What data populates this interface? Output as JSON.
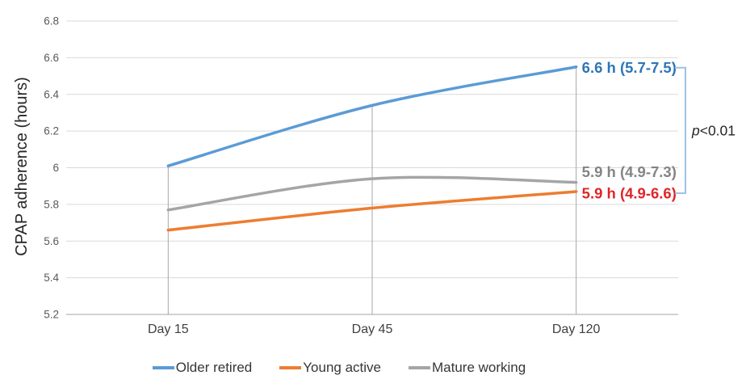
{
  "chart_data": {
    "type": "line",
    "title": "",
    "xlabel": "",
    "ylabel": "CPAP adherence (hours)",
    "categories": [
      "Day 15",
      "Day 45",
      "Day 120"
    ],
    "series": [
      {
        "name": "Older retired",
        "color": "#5b9bd5",
        "values": [
          6.01,
          6.34,
          6.55
        ],
        "end_label": "6.6 h (5.7-7.5)",
        "end_label_color": "#2e75b6"
      },
      {
        "name": "Young active",
        "color": "#ed7d31",
        "values": [
          5.66,
          5.78,
          5.87
        ],
        "end_label": "5.9 h (4.9-6.6)",
        "end_label_color": "#e02428"
      },
      {
        "name": "Mature working",
        "color": "#a5a5a5",
        "values": [
          5.77,
          5.94,
          5.92
        ],
        "end_label": "5.9 h (4.9-7.3)",
        "end_label_color": "#848484"
      }
    ],
    "ylim": [
      5.2,
      6.8
    ],
    "ytick_step": 0.2,
    "ytick_labels": [
      "6.8",
      "6.6",
      "6.4",
      "6.2",
      "6",
      "5.8",
      "5.6",
      "5.4",
      "5.2"
    ],
    "grid": "horizontal",
    "drop_lines": true,
    "legend_position": "bottom",
    "annotation": {
      "text": "p<0.01",
      "italic_text": "p",
      "rest_text": "<0.01",
      "color": "#262626",
      "bracket_color": "#9dc3e6"
    },
    "colors": {
      "gridline": "#d9d9d9",
      "axis_line": "#a6a6a6",
      "drop_line": "#a6a6a6",
      "tick_label": "#595959",
      "category_label": "#404040",
      "axis_title": "#262626"
    }
  }
}
